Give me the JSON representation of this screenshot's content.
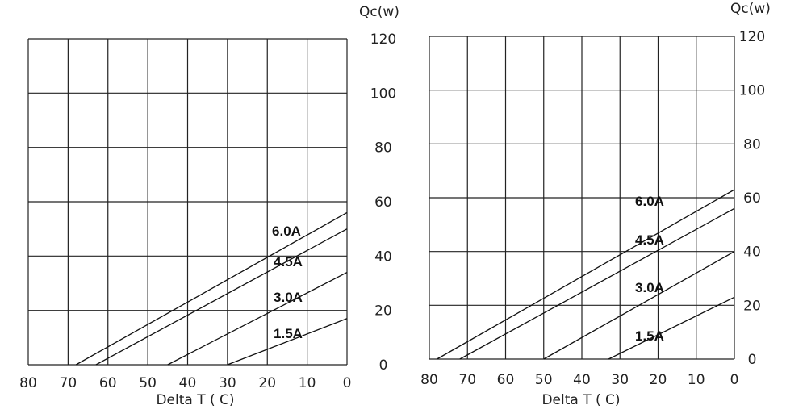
{
  "chart_data": [
    {
      "type": "line",
      "xlabel": "Delta T ( C)",
      "ylabel": "Qc(w)",
      "xlim": [
        80,
        0
      ],
      "ylim": [
        0,
        120
      ],
      "x_ticks": [
        "80",
        "70",
        "60",
        "50",
        "40",
        "30",
        "20",
        "10",
        "0"
      ],
      "y_ticks": [
        "0",
        "20",
        "40",
        "60",
        "80",
        "100",
        "120"
      ],
      "grid": true,
      "series": [
        {
          "name": "6.0A",
          "x": [
            68,
            0
          ],
          "y": [
            0,
            56
          ]
        },
        {
          "name": "4.5A",
          "x": [
            63,
            0
          ],
          "y": [
            0,
            50
          ]
        },
        {
          "name": "3.0A",
          "x": [
            45,
            0
          ],
          "y": [
            0,
            34
          ]
        },
        {
          "name": "1.5A",
          "x": [
            30,
            0
          ],
          "y": [
            0,
            17
          ]
        }
      ]
    },
    {
      "type": "line",
      "xlabel": "Delta T ( C)",
      "ylabel": "Qc(w)",
      "xlim": [
        80,
        0
      ],
      "ylim": [
        0,
        120
      ],
      "x_ticks": [
        "80",
        "70",
        "60",
        "50",
        "40",
        "30",
        "20",
        "10",
        "0"
      ],
      "y_ticks": [
        "0",
        "20",
        "40",
        "60",
        "80",
        "100",
        "120"
      ],
      "grid": true,
      "series": [
        {
          "name": "6.0A",
          "x": [
            78,
            0
          ],
          "y": [
            0,
            63
          ]
        },
        {
          "name": "4.5A",
          "x": [
            72,
            0
          ],
          "y": [
            0,
            56
          ]
        },
        {
          "name": "3.0A",
          "x": [
            50,
            0
          ],
          "y": [
            0,
            40
          ]
        },
        {
          "name": "1.5A",
          "x": [
            33,
            0
          ],
          "y": [
            0,
            23
          ]
        }
      ]
    }
  ]
}
